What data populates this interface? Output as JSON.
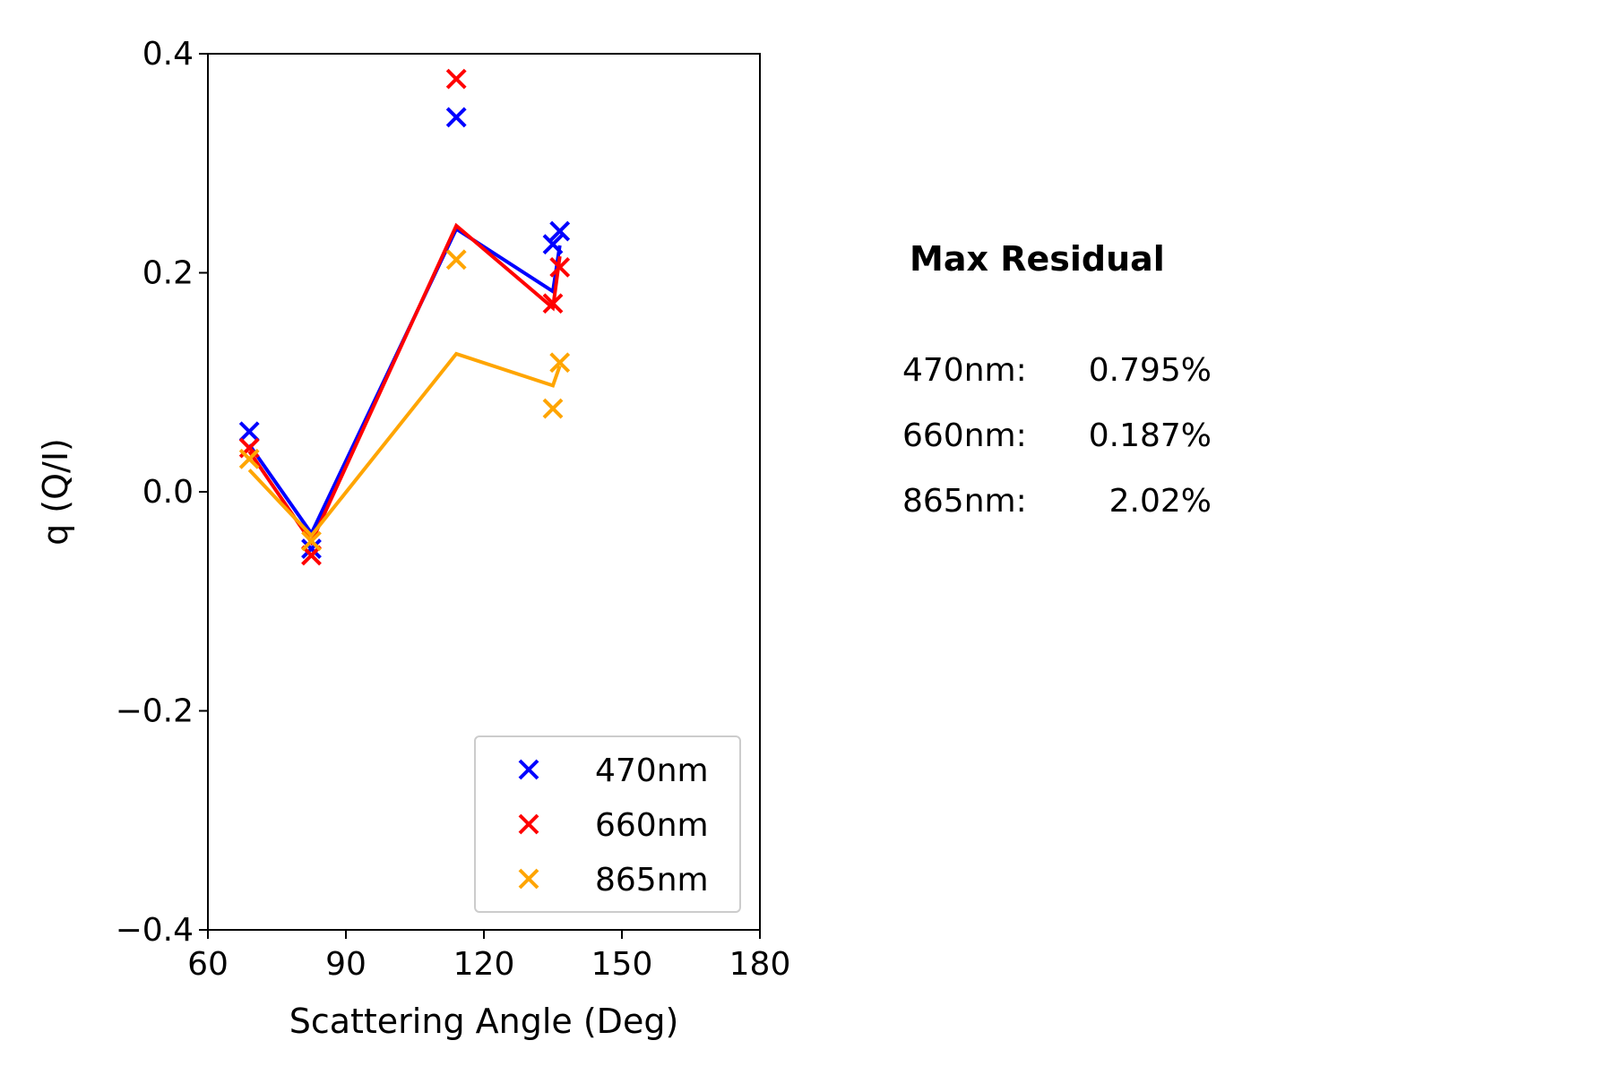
{
  "chart_data": {
    "type": "scatter",
    "xlabel": "Scattering Angle (Deg)",
    "ylabel": "q (Q/I)",
    "xlim": [
      60,
      180
    ],
    "ylim": [
      -0.4,
      0.4
    ],
    "xticks": [
      60,
      90,
      120,
      150,
      180
    ],
    "yticks": [
      -0.4,
      -0.2,
      0.0,
      0.2,
      0.4
    ],
    "xtick_labels": [
      "60",
      "90",
      "120",
      "150",
      "180"
    ],
    "ytick_labels": [
      "−0.4",
      "−0.2",
      "0.0",
      "0.2",
      "0.4"
    ],
    "grid": false,
    "legend_position": "lower-right",
    "series": [
      {
        "name": "470nm",
        "color": "#0000ff",
        "marker": "x",
        "points": [
          [
            69,
            0.055
          ],
          [
            82.5,
            -0.052
          ],
          [
            114,
            0.342
          ],
          [
            135,
            0.226
          ],
          [
            136.5,
            0.238
          ]
        ],
        "line": [
          [
            69,
            0.043
          ],
          [
            82.5,
            -0.038
          ],
          [
            114,
            0.24
          ],
          [
            135,
            0.183
          ],
          [
            136.5,
            0.225
          ]
        ]
      },
      {
        "name": "660nm",
        "color": "#ff0000",
        "marker": "x",
        "points": [
          [
            69,
            0.04
          ],
          [
            82.5,
            -0.058
          ],
          [
            114,
            0.377
          ],
          [
            135,
            0.172
          ],
          [
            136.5,
            0.205
          ]
        ],
        "line": [
          [
            69,
            0.037
          ],
          [
            82.5,
            -0.046
          ],
          [
            114,
            0.243
          ],
          [
            135,
            0.168
          ],
          [
            136.5,
            0.215
          ]
        ]
      },
      {
        "name": "865nm",
        "color": "#ffa500",
        "marker": "x",
        "points": [
          [
            69,
            0.03
          ],
          [
            82.5,
            -0.045
          ],
          [
            114,
            0.212
          ],
          [
            135,
            0.076
          ],
          [
            136.5,
            0.118
          ]
        ],
        "line": [
          [
            69,
            0.02
          ],
          [
            82.5,
            -0.04
          ],
          [
            114,
            0.126
          ],
          [
            135,
            0.097
          ],
          [
            136.5,
            0.115
          ]
        ]
      }
    ]
  },
  "residuals": {
    "title": "Max Residual",
    "rows": [
      {
        "label": "470nm:",
        "value": "0.795%"
      },
      {
        "label": "660nm:",
        "value": "0.187%"
      },
      {
        "label": "865nm:",
        "value": "2.02%"
      }
    ]
  }
}
